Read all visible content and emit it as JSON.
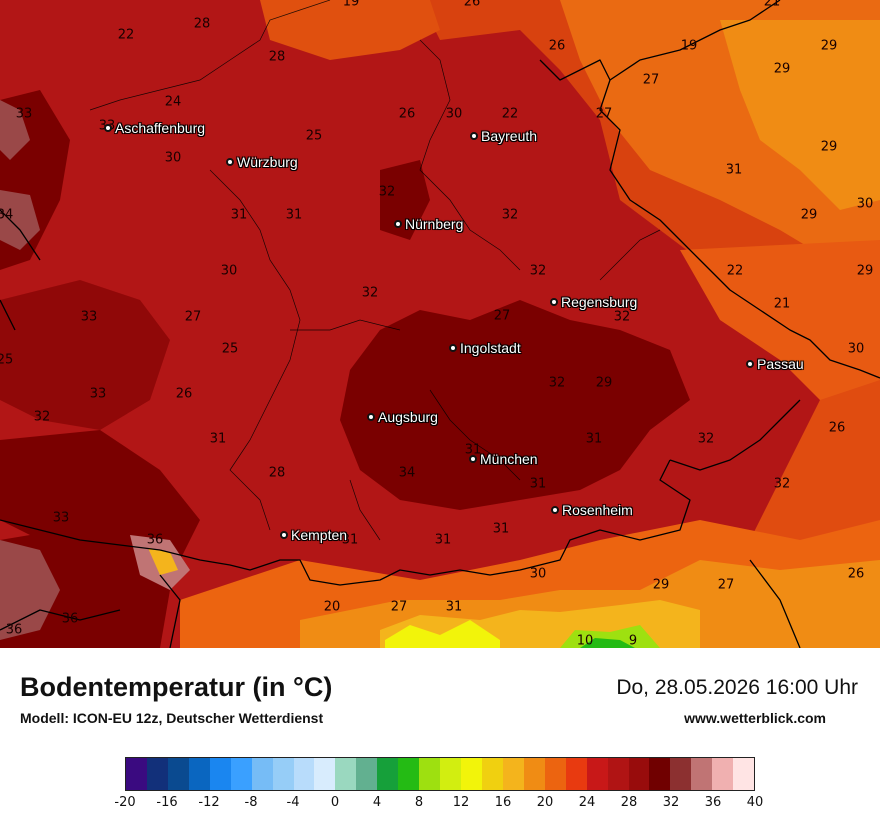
{
  "footer": {
    "title": "Bodentemperatur (in °C)",
    "model": "Modell: ICON-EU 12z, Deutscher Wetterdienst",
    "datetime": "Do, 28.05.2026 16:00 Uhr",
    "website": "www.wetterblick.com"
  },
  "cities": [
    {
      "name": "Aschaffenburg"
    },
    {
      "name": "Würzburg"
    },
    {
      "name": "Bayreuth"
    },
    {
      "name": "Nürnberg"
    },
    {
      "name": "Regensburg"
    },
    {
      "name": "Ingolstadt"
    },
    {
      "name": "Passau"
    },
    {
      "name": "Augsburg"
    },
    {
      "name": "München"
    },
    {
      "name": "Rosenheim"
    },
    {
      "name": "Kempten"
    }
  ],
  "values": [
    "28",
    "22",
    "24",
    "33",
    "33",
    "30",
    "28",
    "25",
    "26",
    "30",
    "22",
    "26",
    "19",
    "29",
    "27",
    "29",
    "27",
    "29",
    "31",
    "34",
    "31",
    "31",
    "32",
    "32",
    "29",
    "30",
    "30",
    "32",
    "22",
    "29",
    "33",
    "27",
    "32",
    "21",
    "32",
    "25",
    "25",
    "27",
    "30",
    "33",
    "26",
    "32",
    "29",
    "32",
    "31",
    "31",
    "32",
    "26",
    "28",
    "34",
    "31",
    "31",
    "32",
    "33",
    "31",
    "31",
    "36",
    "31",
    "30",
    "29",
    "27",
    "26",
    "20",
    "27",
    "31",
    "36",
    "36",
    "10",
    "9",
    "21",
    "26",
    "19"
  ],
  "colorbar": {
    "colors": [
      "#3a0a80",
      "#12307a",
      "#0a4a90",
      "#0a66c0",
      "#1a86f0",
      "#3aa0ff",
      "#76bcf6",
      "#96cdf7",
      "#b8dcfb",
      "#d8ecfd",
      "#9ad8bf",
      "#62b090",
      "#16a03a",
      "#24bb14",
      "#9ee010",
      "#d2ee10",
      "#f2f40a",
      "#f0d010",
      "#f4b41c",
      "#f08c14",
      "#ec6410",
      "#e83a10",
      "#c81818",
      "#b01414",
      "#980c0c",
      "#700000",
      "#8c3030",
      "#c07474",
      "#f0b0b0",
      "#ffe4e4"
    ],
    "ticks": [
      "-20",
      "-16",
      "-12",
      "-8",
      "-4",
      "0",
      "4",
      "8",
      "12",
      "16",
      "20",
      "24",
      "28",
      "32",
      "36",
      "40"
    ]
  }
}
